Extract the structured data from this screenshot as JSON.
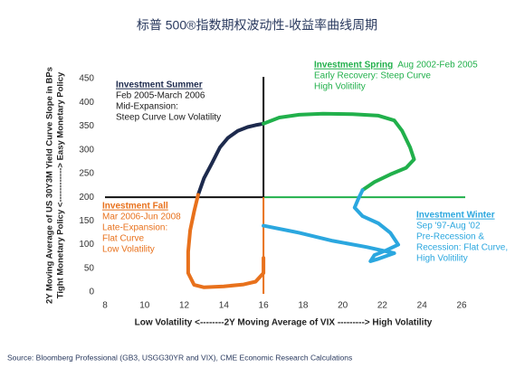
{
  "chart_data": {
    "type": "line",
    "title": "标普 500®指数期权波动性-收益率曲线周期",
    "y_label": "2Y Moving Average of US 30Y3M Yield Curve Slope in BPs",
    "y_label_2": "Tight Monetary Policy <------------> Easy Monetary Policy",
    "x_label": "Low Volatility <--------2Y Moving Average of VIX ---------> High Volatility",
    "source": "Source: Bloomberg Professional (GB3, USGG30YR and VIX), CME Economic Research Calculations",
    "xlim": [
      8,
      26
    ],
    "xticks": [
      8,
      10,
      12,
      14,
      16,
      18,
      20,
      22,
      24,
      26
    ],
    "ylim": [
      0,
      450
    ],
    "yticks": [
      0,
      50,
      100,
      150,
      200,
      250,
      300,
      350,
      400,
      450
    ],
    "grid": false,
    "divider": {
      "x": 16,
      "y": 200
    },
    "series": [
      {
        "name": "Investment Summer",
        "color": "#1d2a4d",
        "x": [
          12.7,
          13.0,
          13.4,
          13.8,
          14.2,
          14.7,
          15.2,
          15.6,
          16.0
        ],
        "values": [
          205,
          240,
          272,
          305,
          325,
          340,
          348,
          352,
          355
        ]
      },
      {
        "name": "Investment Spring",
        "color": "#21b04b",
        "x": [
          16.0,
          16.8,
          17.8,
          19.0,
          20.5,
          21.8,
          22.6,
          23.0,
          23.4,
          23.6,
          23.2,
          22.4,
          21.6,
          21.0
        ],
        "values": [
          355,
          368,
          374,
          376,
          375,
          372,
          362,
          340,
          305,
          280,
          262,
          248,
          232,
          215
        ]
      },
      {
        "name": "Investment Winter",
        "color": "#2ba7df",
        "x": [
          21.0,
          20.8,
          20.6,
          21.0,
          21.8,
          22.4,
          22.8,
          22.2,
          21.6,
          21.4,
          21.8,
          22.6,
          21.2,
          19.5,
          17.8,
          16.0
        ],
        "values": [
          215,
          198,
          178,
          160,
          145,
          125,
          100,
          88,
          78,
          65,
          70,
          82,
          95,
          108,
          125,
          140
        ]
      },
      {
        "name": "Investment Fall",
        "color": "#e8711c",
        "x": [
          16.0,
          16.0,
          15.6,
          15.0,
          14.0,
          13.0,
          12.5,
          12.2,
          12.2,
          12.3,
          12.5,
          12.7
        ],
        "values": [
          72,
          40,
          22,
          16,
          12,
          10,
          15,
          40,
          85,
          130,
          170,
          205
        ]
      }
    ],
    "annotations": [
      {
        "title": "Investment Summer",
        "lines": [
          "Feb 2005-March 2006",
          "Mid-Expansion:",
          "Steep Curve  Low Volatility"
        ]
      },
      {
        "title": "Investment Spring",
        "note": "Aug 2002-Feb 2005",
        "lines": [
          "Early Recovery:  Steep Curve",
          "High Volitility"
        ]
      },
      {
        "title": "Investment Winter",
        "lines": [
          "Sep '97-Aug '02",
          "Pre-Recession &",
          "Recession: Flat Curve,",
          "High Volitility"
        ]
      },
      {
        "title": "Investment Fall",
        "lines": [
          "Mar 2006-Jun 2008",
          "Late-Expansion:",
          "Flat Curve",
          "Low Volatility"
        ]
      }
    ]
  }
}
